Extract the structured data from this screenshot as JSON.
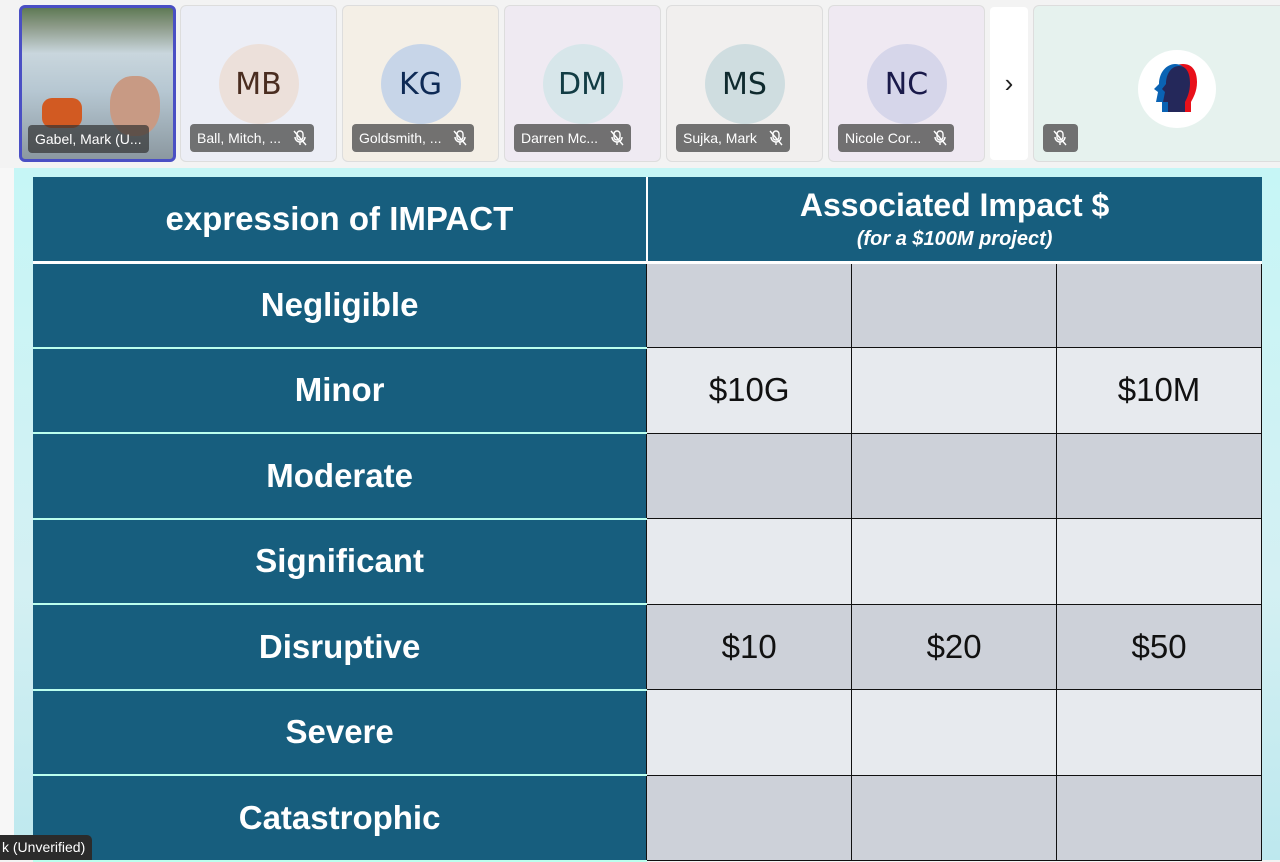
{
  "participants": [
    {
      "name": "Gabel, Mark (U...",
      "type": "video"
    },
    {
      "name": "Ball, Mitch, ...",
      "initials": "MB",
      "avatar_bg": "#ece0da",
      "text_color": "#4a2d20"
    },
    {
      "name": "Goldsmith, ...",
      "initials": "KG",
      "avatar_bg": "#c7d5e8",
      "text_color": "#0e2a55"
    },
    {
      "name": "Darren Mc...",
      "initials": "DM",
      "avatar_bg": "#d7e6ea",
      "text_color": "#123c44"
    },
    {
      "name": "Sujka, Mark",
      "initials": "MS",
      "avatar_bg": "#cfdde0",
      "text_color": "#0f2a2e"
    },
    {
      "name": "Nicole Cor...",
      "initials": "NC",
      "avatar_bg": "#d6d6ea",
      "text_color": "#1a1a4a"
    }
  ],
  "next_label": "›",
  "self_tile": {
    "icon": "head-profile-logo"
  },
  "tooltip": "k (Unverified)",
  "table": {
    "header_left": "expression of IMPACT",
    "header_right": "Associated Impact $",
    "header_right_sub": "(for a $100M project)",
    "rows": [
      {
        "label": "Negligible",
        "cells": [
          "",
          "",
          ""
        ]
      },
      {
        "label": "Minor",
        "cells": [
          "$10G",
          "",
          "$10M"
        ]
      },
      {
        "label": "Moderate",
        "cells": [
          "",
          "",
          ""
        ]
      },
      {
        "label": "Significant",
        "cells": [
          "",
          "",
          ""
        ]
      },
      {
        "label": "Disruptive",
        "cells": [
          "$10",
          "$20",
          "$50"
        ]
      },
      {
        "label": "Severe",
        "cells": [
          "",
          "",
          ""
        ]
      },
      {
        "label": "Catastrophic",
        "cells": [
          "",
          "",
          ""
        ]
      }
    ]
  },
  "colors": {
    "header": "#175e7e",
    "cell_dark": "#cdd1d9",
    "cell_light": "#e7eaee",
    "selected_border": "#4a4fc4"
  }
}
